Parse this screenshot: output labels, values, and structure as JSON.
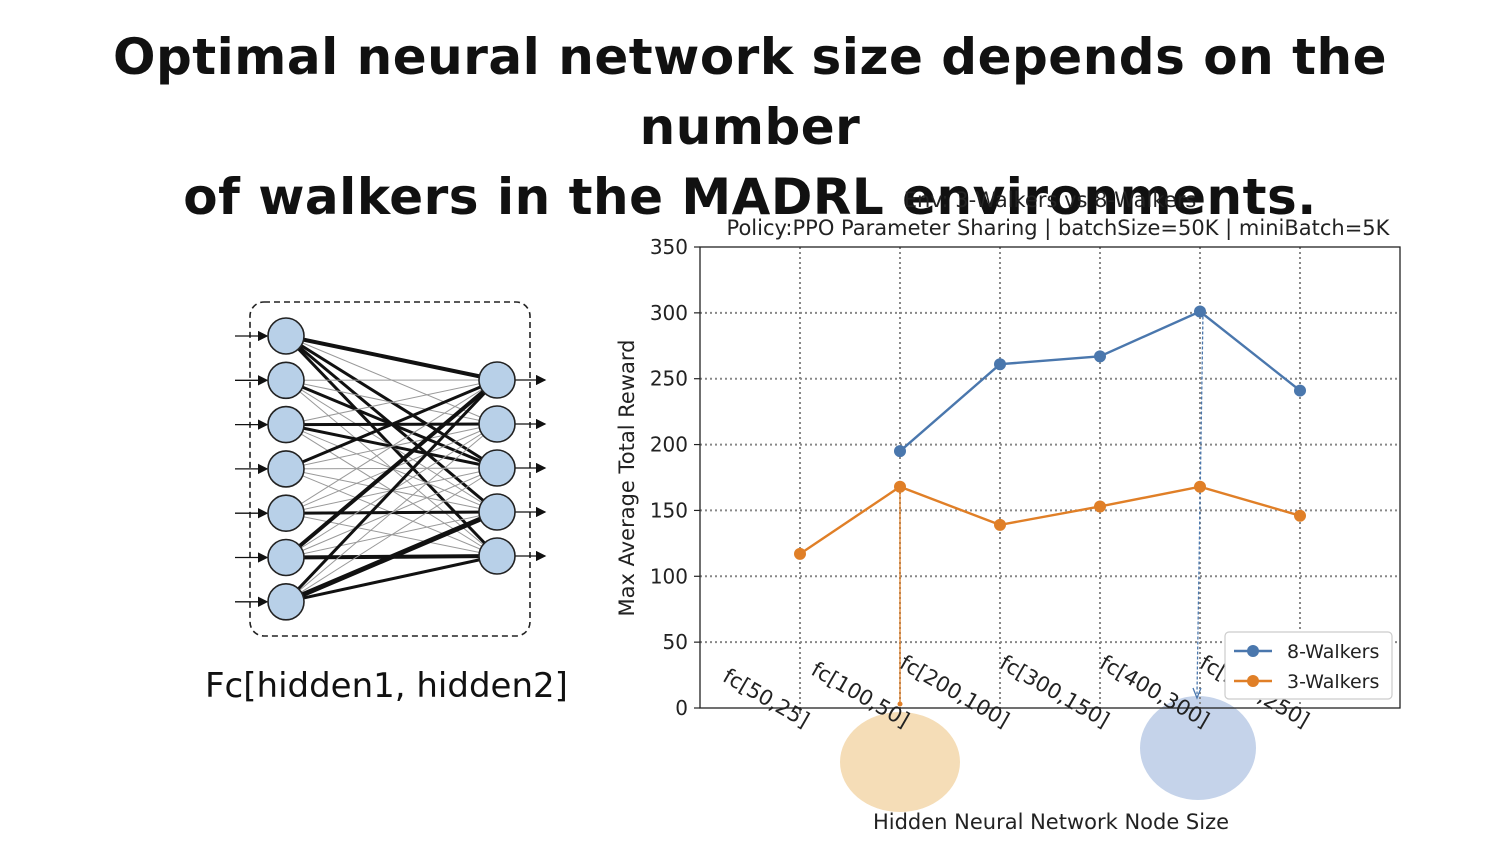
{
  "slide": {
    "title_line1": "Optimal neural network size depends on the number",
    "title_line2": "of walkers in the MADRL environments.",
    "diagram_caption": "Fc[hidden1, hidden2]"
  },
  "colors": {
    "blue": "#4a77ad",
    "orange": "#e07f27",
    "node_fill": "#b8d0e8",
    "highlight_orange": "#f5ddb7",
    "highlight_blue": "#c5d3ea"
  },
  "chart_data": {
    "type": "line",
    "title": "Env: 3-Walkers vs 8-Walkers",
    "subtitle": "Policy:PPO Parameter Sharing | batchSize=50K | miniBatch=5K",
    "xlabel": "Hidden Neural Network Node Size",
    "ylabel": "Max Average Total Reward",
    "categories": [
      "fc[50,25]",
      "fc[100,50]",
      "fc[200,100]",
      "fc[300,150]",
      "fc[400,300]",
      "fc[500,250]"
    ],
    "ylim": [
      0,
      350
    ],
    "yticks": [
      "0",
      "50",
      "100",
      "150",
      "200",
      "250",
      "300",
      "350"
    ],
    "grid": true,
    "legend_position": "lower-right",
    "series": [
      {
        "name": "8-Walkers",
        "color": "#4a77ad",
        "values": [
          null,
          195,
          261,
          267,
          301,
          241
        ]
      },
      {
        "name": "3-Walkers",
        "color": "#e07f27",
        "values": [
          117,
          168,
          139,
          153,
          168,
          146
        ]
      }
    ],
    "annotations": [
      {
        "series": "3-Walkers",
        "category": "fc[100,50]",
        "note": "highlighted maximum"
      },
      {
        "series": "8-Walkers",
        "category": "fc[400,300]",
        "note": "highlighted maximum"
      }
    ]
  }
}
